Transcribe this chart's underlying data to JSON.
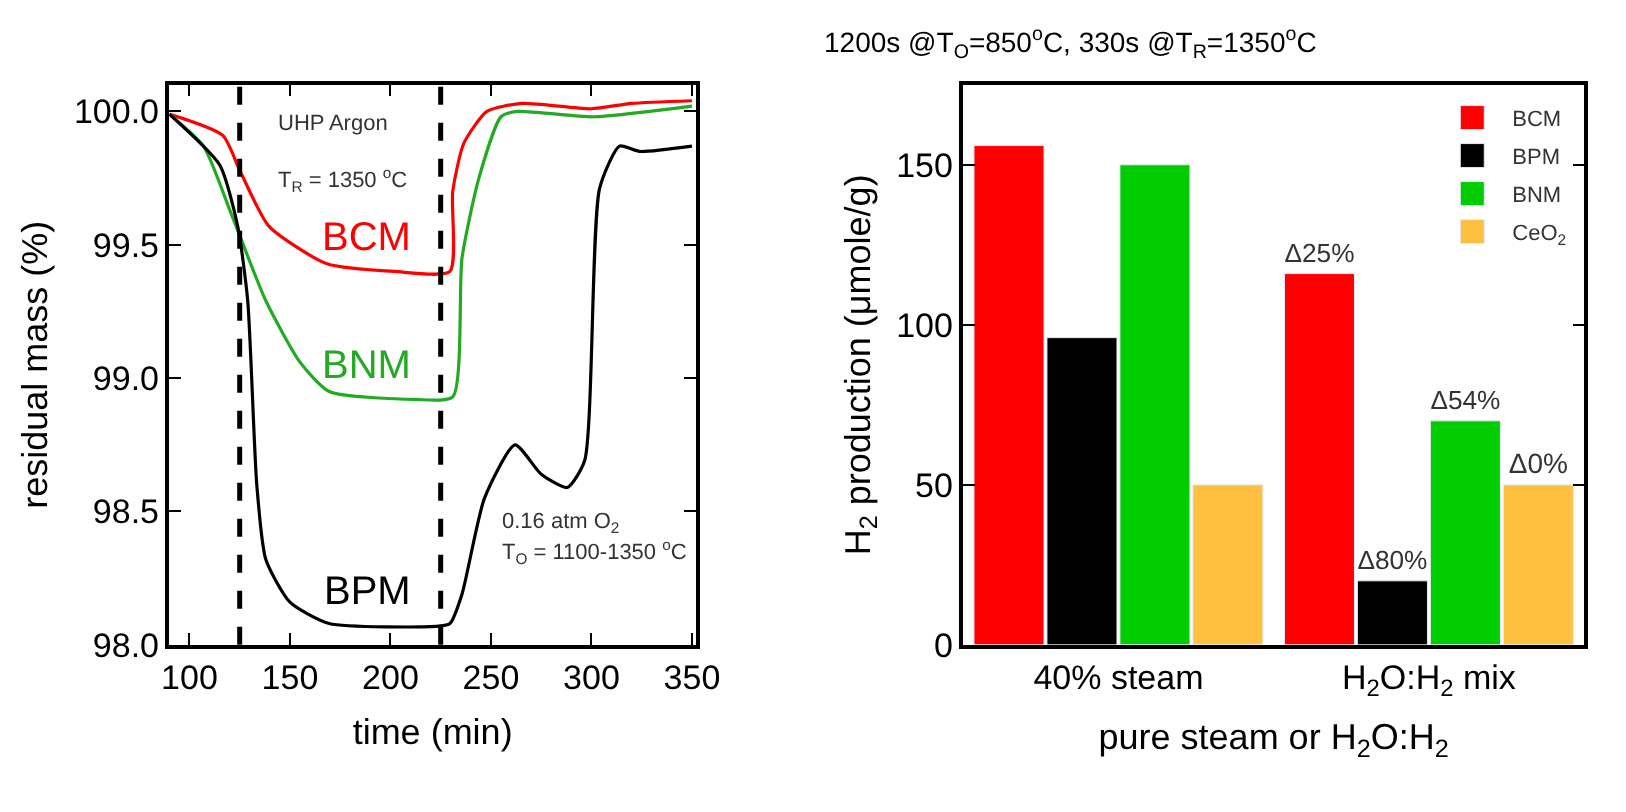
{
  "chart_data": [
    {
      "type": "line",
      "xlabel": "time (min)",
      "ylabel": "residual mass (%)",
      "xlim": [
        90,
        352
      ],
      "ylim": [
        98.0,
        100.1
      ],
      "xticks": [
        100,
        150,
        200,
        250,
        300,
        350
      ],
      "yticks": [
        {
          "value": 98,
          "label": "98.0"
        },
        98.5,
        {
          "value": 99,
          "label": "99.0"
        },
        99.5,
        {
          "value": 100,
          "label": "100.0"
        }
      ],
      "marker": "none",
      "line_style": "solid",
      "series": [
        {
          "name": "BCM",
          "color": "#ff0000",
          "x": [
            90,
            116.6,
            125,
            139.5,
            168,
            202,
            229.6,
            231,
            236.5,
            248,
            265.4,
            299.7,
            320,
            350
          ],
          "values": [
            99.99,
            99.91,
            99.78,
            99.57,
            99.43,
            99.4,
            99.4,
            99.7,
            99.88,
            100.0,
            100.03,
            100.01,
            100.03,
            100.04
          ]
        },
        {
          "name": "BNM",
          "color": "#22aa22",
          "x": [
            90,
            107,
            120.6,
            138,
            155,
            169.5,
            212,
            231,
            235.6,
            244,
            255,
            263,
            301,
            350
          ],
          "values": [
            99.99,
            99.87,
            99.62,
            99.29,
            99.06,
            98.95,
            98.92,
            98.93,
            99.45,
            99.75,
            99.98,
            100.0,
            99.98,
            100.02
          ]
        },
        {
          "name": "BPM",
          "color": "#000000",
          "x": [
            90,
            115,
            124,
            129,
            133.5,
            138,
            150,
            169.5,
            224,
            229.6,
            235.6,
            246.8,
            262,
            275,
            288,
            296.6,
            304,
            314,
            324,
            350
          ],
          "values": [
            99.99,
            99.8,
            99.57,
            99.29,
            98.6,
            98.32,
            98.16,
            98.08,
            98.07,
            98.08,
            98.19,
            98.55,
            98.75,
            98.64,
            98.59,
            98.69,
            99.71,
            99.87,
            99.85,
            99.87
          ]
        }
      ],
      "ref_lines": [
        {
          "axis": "x",
          "value": 125,
          "color": "#000000",
          "line_style": "dashed"
        },
        {
          "axis": "x",
          "value": 225,
          "color": "#000000",
          "line_style": "dashed"
        }
      ],
      "annotations": [
        "UHP Argon",
        "T$_{R}$ = 1350 $^{o}$C",
        "0.16 atm O$_{2}$",
        "T$_{O}$ = 1100-1350 $^{o}$C"
      ]
    },
    {
      "type": "bar",
      "title": "1200s @T$_{O}$=850$^{o}$C, 330s @T$_{R}$=1350$^{o}$C",
      "xlabel": "pure steam or H$_{2}$O:H$_{2}$",
      "ylabel": "H$_{2}$ production (μmole/g)",
      "categories": [
        "40% steam",
        "H$_{2}$O:H$_{2}$ mix"
      ],
      "ylim": [
        0,
        175
      ],
      "yticks": [
        0,
        50,
        100,
        150
      ],
      "legend": "top right",
      "series": [
        {
          "name": "BCM",
          "color": "#ff0000",
          "values": [
            156,
            116
          ],
          "value_labels": [
            null,
            "Δ25%"
          ]
        },
        {
          "name": "BPM",
          "color": "#000000",
          "values": [
            96,
            20
          ],
          "value_labels": [
            null,
            "Δ80%"
          ]
        },
        {
          "name": "BNM",
          "color": "#00cc00",
          "values": [
            150,
            70
          ],
          "value_labels": [
            null,
            "Δ54%"
          ]
        },
        {
          "name": "CeO$_{2}$",
          "color": "#ffbf40",
          "values": [
            50,
            50
          ],
          "value_labels": [
            null,
            "Δ0%"
          ]
        }
      ]
    }
  ]
}
